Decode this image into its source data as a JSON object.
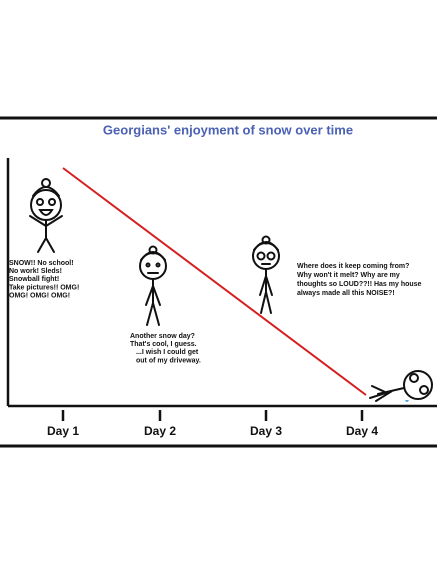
{
  "title": "Georgians' enjoyment of snow over time",
  "x_labels": [
    "Day 1",
    "Day 2",
    "Day 3",
    "Day 4"
  ],
  "captions": [
    [
      "SNOW!! No school!",
      "No work! Sleds!",
      "Snowball fight!",
      "Take pictures!! OMG!",
      "OMG! OMG! OMG!"
    ],
    [
      "Another snow day?",
      "That's cool, I guess.",
      "...I wish I could get",
      "out of my driveway."
    ],
    [
      "Where does it keep coming from?",
      "Why won't it melt? Why are my",
      "thoughts so LOUD??!! Has my house",
      "always made all this NOISE?!"
    ]
  ]
}
